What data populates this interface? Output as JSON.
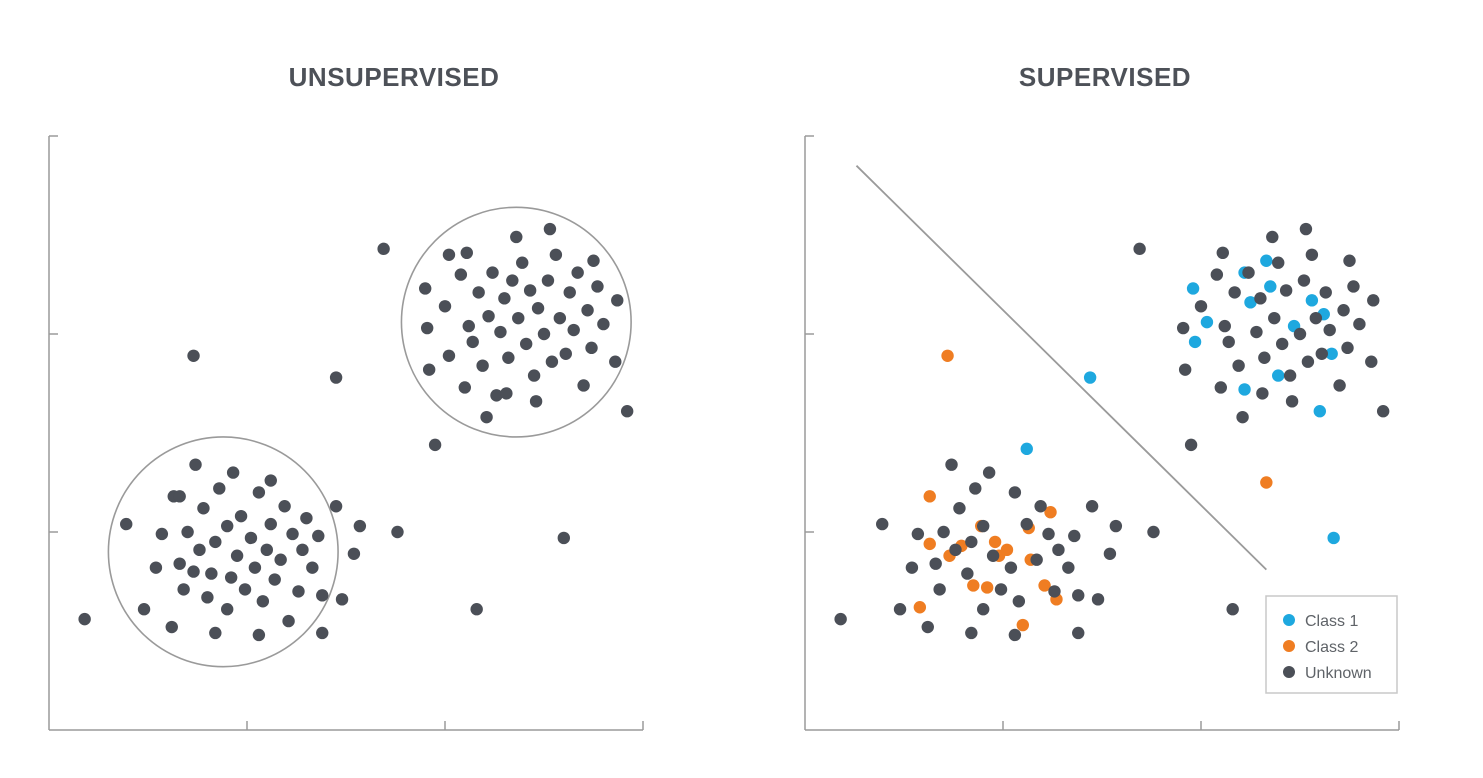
{
  "colors": {
    "unknown": "#4b4f57",
    "class1": "#1ea8df",
    "class2": "#ef7d22",
    "axis": "#9a9a9a",
    "boundary": "#9a9a9a"
  },
  "chart_data": [
    {
      "type": "scatter",
      "title": "UNSUPERVISED",
      "xlabel": "",
      "ylabel": "",
      "xlim": [
        0,
        3
      ],
      "ylim": [
        0,
        3
      ],
      "grid": false,
      "xticks": [
        1,
        2
      ],
      "yticks": [
        1,
        2
      ],
      "annotations": [
        {
          "type": "circle",
          "cx": 0.88,
          "cy": 0.9,
          "r": 0.58
        },
        {
          "type": "circle",
          "cx": 2.36,
          "cy": 2.06,
          "r": 0.58
        }
      ],
      "series": [
        {
          "values_xy": [
            [
              0.18,
              0.56
            ],
            [
              0.39,
              1.04
            ],
            [
              0.48,
              0.61
            ],
            [
              0.54,
              0.82
            ],
            [
              0.57,
              0.99
            ],
            [
              0.62,
              0.52
            ],
            [
              0.63,
              1.18
            ],
            [
              0.66,
              0.84
            ],
            [
              0.68,
              0.71
            ],
            [
              0.73,
              0.8
            ],
            [
              0.7,
              1.0
            ],
            [
              0.76,
              0.91
            ],
            [
              0.78,
              1.12
            ],
            [
              0.8,
              0.67
            ],
            [
              0.82,
              0.79
            ],
            [
              0.84,
              0.95
            ],
            [
              0.86,
              1.22
            ],
            [
              0.9,
              0.61
            ],
            [
              0.9,
              1.03
            ],
            [
              0.92,
              0.77
            ],
            [
              0.95,
              0.88
            ],
            [
              0.97,
              1.08
            ],
            [
              0.99,
              0.71
            ],
            [
              1.02,
              0.97
            ],
            [
              1.04,
              0.82
            ],
            [
              1.06,
              1.2
            ],
            [
              1.08,
              0.65
            ],
            [
              1.1,
              0.91
            ],
            [
              1.12,
              1.04
            ],
            [
              1.14,
              0.76
            ],
            [
              1.17,
              0.86
            ],
            [
              1.19,
              1.13
            ],
            [
              1.21,
              0.55
            ],
            [
              1.23,
              0.99
            ],
            [
              1.26,
              0.7
            ],
            [
              1.28,
              0.91
            ],
            [
              1.3,
              1.07
            ],
            [
              1.33,
              0.82
            ],
            [
              1.36,
              0.98
            ],
            [
              1.38,
              0.68
            ],
            [
              0.74,
              1.34
            ],
            [
              0.93,
              1.3
            ],
            [
              0.66,
              1.18
            ],
            [
              1.06,
              0.48
            ],
            [
              0.84,
              0.49
            ],
            [
              1.12,
              1.26
            ],
            [
              1.38,
              0.49
            ],
            [
              1.45,
              1.13
            ],
            [
              1.54,
              0.89
            ],
            [
              1.57,
              1.03
            ],
            [
              1.48,
              0.66
            ],
            [
              0.73,
              1.89
            ],
            [
              1.45,
              1.78
            ],
            [
              1.69,
              2.43
            ],
            [
              1.76,
              1.0
            ],
            [
              1.95,
              1.44
            ],
            [
              2.16,
              0.61
            ],
            [
              2.6,
              0.97
            ],
            [
              2.92,
              1.61
            ],
            [
              1.9,
              2.23
            ],
            [
              1.91,
              2.03
            ],
            [
              1.92,
              1.82
            ],
            [
              2.0,
              2.14
            ],
            [
              2.02,
              1.89
            ],
            [
              2.08,
              2.3
            ],
            [
              2.1,
              1.73
            ],
            [
              2.12,
              2.04
            ],
            [
              2.14,
              1.96
            ],
            [
              2.17,
              2.21
            ],
            [
              2.19,
              1.84
            ],
            [
              2.22,
              2.09
            ],
            [
              2.24,
              2.31
            ],
            [
              2.26,
              1.69
            ],
            [
              2.28,
              2.01
            ],
            [
              2.3,
              2.18
            ],
            [
              2.32,
              1.88
            ],
            [
              2.34,
              2.27
            ],
            [
              2.37,
              2.08
            ],
            [
              2.39,
              2.36
            ],
            [
              2.41,
              1.95
            ],
            [
              2.43,
              2.22
            ],
            [
              2.45,
              1.79
            ],
            [
              2.47,
              2.13
            ],
            [
              2.5,
              2.0
            ],
            [
              2.52,
              2.27
            ],
            [
              2.54,
              1.86
            ],
            [
              2.56,
              2.4
            ],
            [
              2.58,
              2.08
            ],
            [
              2.61,
              1.9
            ],
            [
              2.63,
              2.21
            ],
            [
              2.65,
              2.02
            ],
            [
              2.67,
              2.31
            ],
            [
              2.7,
              1.74
            ],
            [
              2.72,
              2.12
            ],
            [
              2.74,
              1.93
            ],
            [
              2.77,
              2.24
            ],
            [
              2.8,
              2.05
            ],
            [
              2.86,
              1.86
            ],
            [
              2.87,
              2.17
            ],
            [
              2.11,
              2.41
            ],
            [
              2.36,
              2.49
            ],
            [
              2.53,
              2.53
            ],
            [
              2.46,
              1.66
            ],
            [
              2.21,
              1.58
            ],
            [
              2.31,
              1.7
            ],
            [
              2.02,
              2.4
            ],
            [
              2.75,
              2.37
            ]
          ]
        }
      ]
    },
    {
      "type": "scatter",
      "title": "SUPERVISED",
      "xlabel": "",
      "ylabel": "",
      "xlim": [
        0,
        3
      ],
      "ylim": [
        0,
        3
      ],
      "grid": false,
      "xticks": [
        1,
        2
      ],
      "yticks": [
        1,
        2
      ],
      "legend": {
        "position": "bottom-right",
        "entries": [
          "Class 1",
          "Class 2",
          "Unknown"
        ]
      },
      "annotations": [
        {
          "type": "line",
          "x": [
            0.26,
            2.33
          ],
          "y": [
            2.85,
            0.81
          ]
        }
      ],
      "series": [
        {
          "name": "Class 1",
          "values_xy": [
            [
              1.44,
              1.78
            ],
            [
              1.12,
              1.42
            ],
            [
              1.96,
              2.23
            ],
            [
              1.97,
              1.96
            ],
            [
              2.03,
              2.06
            ],
            [
              2.22,
              2.31
            ],
            [
              2.25,
              2.16
            ],
            [
              2.22,
              1.72
            ],
            [
              2.33,
              2.37
            ],
            [
              2.35,
              2.24
            ],
            [
              2.39,
              1.79
            ],
            [
              2.47,
              2.04
            ],
            [
              2.56,
              2.17
            ],
            [
              2.66,
              1.9
            ],
            [
              2.62,
              2.1
            ],
            [
              2.6,
              1.61
            ],
            [
              2.67,
              0.97
            ]
          ]
        },
        {
          "name": "Class 2",
          "values_xy": [
            [
              0.72,
              1.89
            ],
            [
              0.58,
              0.62
            ],
            [
              0.63,
              0.94
            ],
            [
              0.73,
              0.88
            ],
            [
              0.79,
              0.93
            ],
            [
              0.85,
              0.73
            ],
            [
              0.89,
              1.03
            ],
            [
              0.96,
              0.95
            ],
            [
              0.98,
              0.88
            ],
            [
              1.02,
              0.91
            ],
            [
              0.92,
              0.72
            ],
            [
              1.1,
              0.53
            ],
            [
              1.14,
              0.86
            ],
            [
              1.21,
              0.73
            ],
            [
              1.27,
              0.66
            ],
            [
              1.13,
              1.02
            ],
            [
              1.24,
              1.1
            ],
            [
              0.63,
              1.18
            ],
            [
              2.33,
              1.25
            ]
          ]
        },
        {
          "name": "Unknown",
          "values_xy": [
            [
              0.18,
              0.56
            ],
            [
              0.39,
              1.04
            ],
            [
              0.48,
              0.61
            ],
            [
              0.54,
              0.82
            ],
            [
              0.57,
              0.99
            ],
            [
              0.62,
              0.52
            ],
            [
              0.66,
              0.84
            ],
            [
              0.68,
              0.71
            ],
            [
              0.7,
              1.0
            ],
            [
              0.76,
              0.91
            ],
            [
              0.78,
              1.12
            ],
            [
              0.82,
              0.79
            ],
            [
              0.84,
              0.95
            ],
            [
              0.86,
              1.22
            ],
            [
              0.9,
              0.61
            ],
            [
              0.9,
              1.03
            ],
            [
              0.95,
              0.88
            ],
            [
              0.99,
              0.71
            ],
            [
              1.04,
              0.82
            ],
            [
              1.06,
              1.2
            ],
            [
              1.08,
              0.65
            ],
            [
              1.12,
              1.04
            ],
            [
              1.17,
              0.86
            ],
            [
              1.19,
              1.13
            ],
            [
              1.23,
              0.99
            ],
            [
              1.26,
              0.7
            ],
            [
              1.28,
              0.91
            ],
            [
              1.33,
              0.82
            ],
            [
              1.36,
              0.98
            ],
            [
              1.38,
              0.68
            ],
            [
              0.74,
              1.34
            ],
            [
              0.93,
              1.3
            ],
            [
              1.06,
              0.48
            ],
            [
              0.84,
              0.49
            ],
            [
              1.38,
              0.49
            ],
            [
              1.45,
              1.13
            ],
            [
              1.54,
              0.89
            ],
            [
              1.57,
              1.03
            ],
            [
              1.48,
              0.66
            ],
            [
              1.76,
              1.0
            ],
            [
              1.95,
              1.44
            ],
            [
              2.16,
              0.61
            ],
            [
              2.92,
              1.61
            ],
            [
              1.69,
              2.43
            ],
            [
              1.91,
              2.03
            ],
            [
              1.92,
              1.82
            ],
            [
              2.0,
              2.14
            ],
            [
              2.08,
              2.3
            ],
            [
              2.1,
              1.73
            ],
            [
              2.12,
              2.04
            ],
            [
              2.14,
              1.96
            ],
            [
              2.17,
              2.21
            ],
            [
              2.19,
              1.84
            ],
            [
              2.24,
              2.31
            ],
            [
              2.28,
              2.01
            ],
            [
              2.3,
              2.18
            ],
            [
              2.32,
              1.88
            ],
            [
              2.37,
              2.08
            ],
            [
              2.39,
              2.36
            ],
            [
              2.41,
              1.95
            ],
            [
              2.43,
              2.22
            ],
            [
              2.45,
              1.79
            ],
            [
              2.5,
              2.0
            ],
            [
              2.52,
              2.27
            ],
            [
              2.54,
              1.86
            ],
            [
              2.56,
              2.4
            ],
            [
              2.58,
              2.08
            ],
            [
              2.61,
              1.9
            ],
            [
              2.63,
              2.21
            ],
            [
              2.65,
              2.02
            ],
            [
              2.7,
              1.74
            ],
            [
              2.72,
              2.12
            ],
            [
              2.74,
              1.93
            ],
            [
              2.77,
              2.24
            ],
            [
              2.8,
              2.05
            ],
            [
              2.86,
              1.86
            ],
            [
              2.87,
              2.17
            ],
            [
              2.11,
              2.41
            ],
            [
              2.36,
              2.49
            ],
            [
              2.53,
              2.53
            ],
            [
              2.46,
              1.66
            ],
            [
              2.21,
              1.58
            ],
            [
              2.31,
              1.7
            ],
            [
              2.75,
              2.37
            ]
          ]
        }
      ]
    }
  ]
}
